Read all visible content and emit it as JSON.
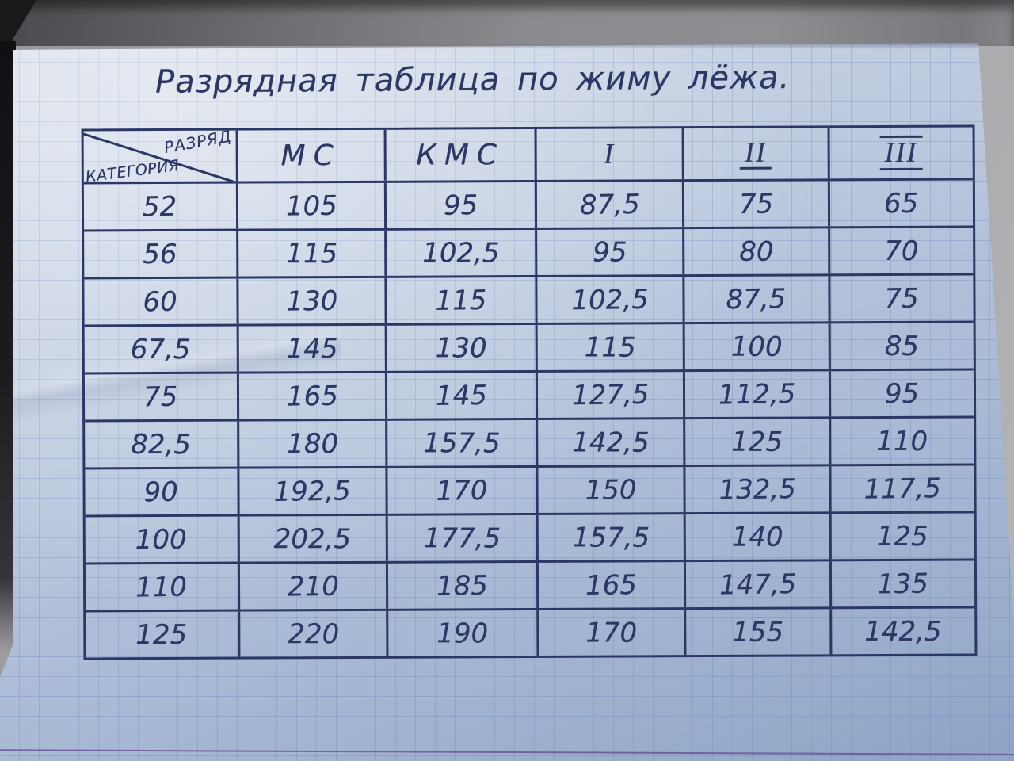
{
  "title": "Разрядная таблица по жиму лёжа.",
  "table": {
    "corner_top_right": "РАЗРЯД",
    "corner_bottom_left": "КАТЕГОРИЯ",
    "columns": [
      "МС",
      "КМС",
      "I",
      "II",
      "III"
    ],
    "rows": [
      {
        "category": "52",
        "values": [
          "105",
          "95",
          "87,5",
          "75",
          "65"
        ]
      },
      {
        "category": "56",
        "values": [
          "115",
          "102,5",
          "95",
          "80",
          "70"
        ]
      },
      {
        "category": "60",
        "values": [
          "130",
          "115",
          "102,5",
          "87,5",
          "75"
        ]
      },
      {
        "category": "67,5",
        "values": [
          "145",
          "130",
          "115",
          "100",
          "85"
        ]
      },
      {
        "category": "75",
        "values": [
          "165",
          "145",
          "127,5",
          "112,5",
          "95"
        ]
      },
      {
        "category": "82,5",
        "values": [
          "180",
          "157,5",
          "142,5",
          "125",
          "110"
        ]
      },
      {
        "category": "90",
        "values": [
          "192,5",
          "170",
          "150",
          "132,5",
          "117,5"
        ]
      },
      {
        "category": "100",
        "values": [
          "202,5",
          "177,5",
          "157,5",
          "140",
          "125"
        ]
      },
      {
        "category": "110",
        "values": [
          "210",
          "185",
          "165",
          "147,5",
          "135"
        ]
      },
      {
        "category": "125",
        "values": [
          "220",
          "190",
          "170",
          "155",
          "142,5"
        ]
      }
    ]
  },
  "chart_data": {
    "type": "table",
    "title": "Разрядная таблица по жиму лёжа.",
    "row_header": "КАТЕГОРИЯ",
    "column_header": "РАЗРЯД",
    "columns": [
      "МС",
      "КМС",
      "I",
      "II",
      "III"
    ],
    "categories": [
      52,
      56,
      60,
      67.5,
      75,
      82.5,
      90,
      100,
      110,
      125
    ],
    "series": [
      {
        "name": "МС",
        "values": [
          105,
          115,
          130,
          145,
          165,
          180,
          192.5,
          202.5,
          210,
          220
        ]
      },
      {
        "name": "КМС",
        "values": [
          95,
          102.5,
          115,
          130,
          145,
          157.5,
          170,
          177.5,
          185,
          190
        ]
      },
      {
        "name": "I",
        "values": [
          87.5,
          95,
          102.5,
          115,
          127.5,
          142.5,
          150,
          157.5,
          165,
          170
        ]
      },
      {
        "name": "II",
        "values": [
          75,
          80,
          87.5,
          100,
          112.5,
          125,
          132.5,
          140,
          147.5,
          155
        ]
      },
      {
        "name": "III",
        "values": [
          65,
          70,
          75,
          85,
          95,
          110,
          117.5,
          125,
          135,
          142.5
        ]
      }
    ]
  },
  "colors": {
    "ink": "#2c3765",
    "page_highlight": "#d6dde9",
    "page_shadow": "#8fa4c6",
    "grid_line": "rgba(100,130,185,.30)",
    "margin_line": "#6a4d92",
    "background_gray": "#a4a4a8",
    "notebook_edge": "#101012"
  }
}
